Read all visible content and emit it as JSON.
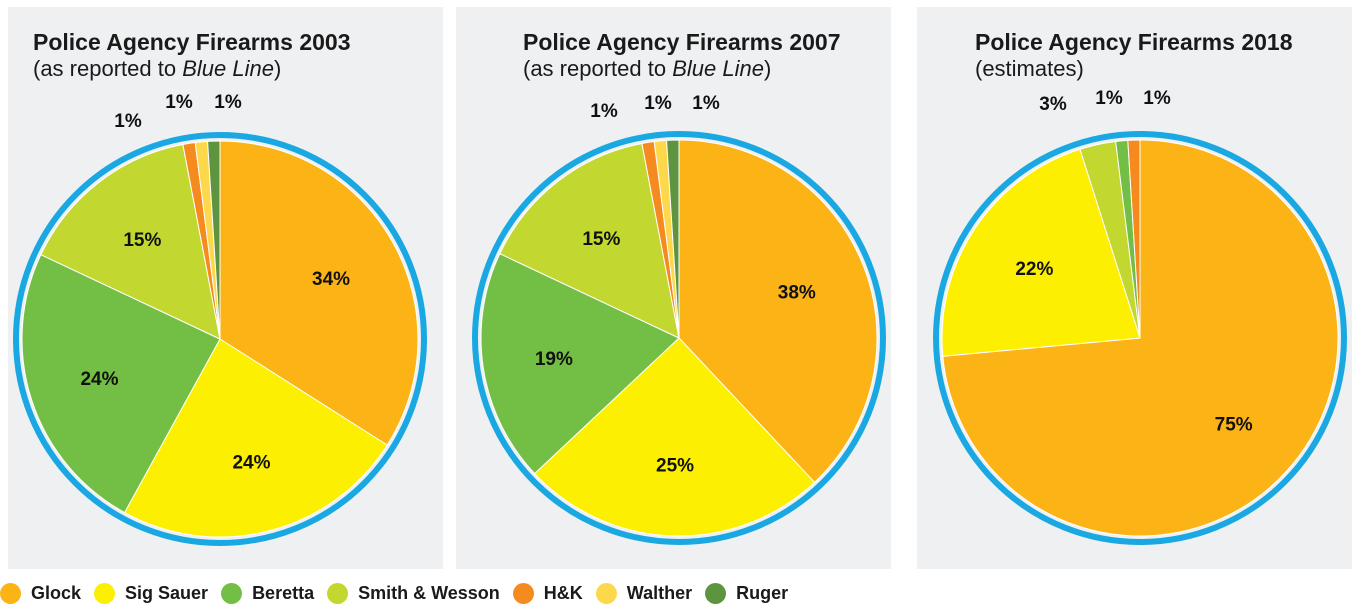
{
  "colors": {
    "Glock": "#fbb316",
    "Sig Sauer": "#fcef00",
    "Beretta": "#73be44",
    "Smith & Wesson": "#c2d830",
    "H&K": "#f58a1f",
    "Walther": "#fdd84b",
    "Ruger": "#5e9440",
    "ring": "#1aa8e2",
    "panel": "#eff0f2"
  },
  "legend": [
    "Glock",
    "Sig Sauer",
    "Beretta",
    "Smith & Wesson",
    "H&K",
    "Walther",
    "Ruger"
  ],
  "chart_data": [
    {
      "type": "pie",
      "title": "Police Agency Firearms 2003",
      "subtitle_prefix": "(as reported to ",
      "subtitle_italic": "Blue Line",
      "subtitle_suffix": ")",
      "slices": [
        {
          "name": "Glock",
          "value": 34,
          "label": "34%"
        },
        {
          "name": "Sig Sauer",
          "value": 24,
          "label": "24%"
        },
        {
          "name": "Beretta",
          "value": 24,
          "label": "24%"
        },
        {
          "name": "Smith & Wesson",
          "value": 15,
          "label": "15%"
        },
        {
          "name": "H&K",
          "value": 1,
          "label": "1%"
        },
        {
          "name": "Walther",
          "value": 1,
          "label": "1%"
        },
        {
          "name": "Ruger",
          "value": 1,
          "label": "1%"
        }
      ]
    },
    {
      "type": "pie",
      "title": "Police Agency Firearms 2007",
      "subtitle_prefix": "(as reported to ",
      "subtitle_italic": "Blue Line",
      "subtitle_suffix": ")",
      "slices": [
        {
          "name": "Glock",
          "value": 38,
          "label": "38%"
        },
        {
          "name": "Sig Sauer",
          "value": 25,
          "label": "25%"
        },
        {
          "name": "Beretta",
          "value": 19,
          "label": "19%"
        },
        {
          "name": "Smith & Wesson",
          "value": 15,
          "label": "15%"
        },
        {
          "name": "H&K",
          "value": 1,
          "label": "1%"
        },
        {
          "name": "Walther",
          "value": 1,
          "label": "1%"
        },
        {
          "name": "Ruger",
          "value": 1,
          "label": "1%"
        }
      ]
    },
    {
      "type": "pie",
      "title": "Police Agency Firearms 2018",
      "subtitle_prefix": "(estimates)",
      "subtitle_italic": "",
      "subtitle_suffix": "",
      "slices": [
        {
          "name": "Glock",
          "value": 75,
          "label": "75%"
        },
        {
          "name": "Sig Sauer",
          "value": 22,
          "label": "22%"
        },
        {
          "name": "Smith & Wesson",
          "value": 3,
          "label": "3%"
        },
        {
          "name": "Beretta",
          "value": 1,
          "label": "1%"
        },
        {
          "name": "H&K",
          "value": 1,
          "label": "1%"
        }
      ]
    }
  ]
}
